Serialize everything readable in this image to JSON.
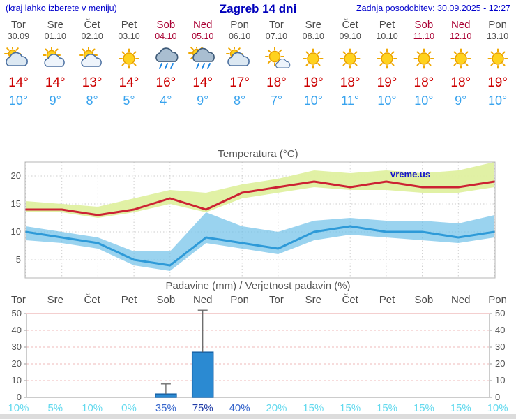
{
  "header": {
    "left_note": "(kraj lahko izberete v meniju)",
    "title": "Zagreb 14 dni",
    "updated": "Zadnja posodobitev: 30.09.2025 - 12:27"
  },
  "days": [
    {
      "name": "Tor",
      "date": "30.09",
      "weekend": false,
      "icon": "cloudy",
      "tmax": "14°",
      "tmin": "10°",
      "pop": "10%",
      "pop_level": "low"
    },
    {
      "name": "Sre",
      "date": "01.10",
      "weekend": false,
      "icon": "partly",
      "tmax": "14°",
      "tmin": "9°",
      "pop": "5%",
      "pop_level": "low"
    },
    {
      "name": "Čet",
      "date": "02.10",
      "weekend": false,
      "icon": "partly",
      "tmax": "13°",
      "tmin": "8°",
      "pop": "10%",
      "pop_level": "low"
    },
    {
      "name": "Pet",
      "date": "03.10",
      "weekend": false,
      "icon": "sunny",
      "tmax": "14°",
      "tmin": "5°",
      "pop": "0%",
      "pop_level": "low"
    },
    {
      "name": "Sob",
      "date": "04.10",
      "weekend": true,
      "icon": "rain",
      "tmax": "16°",
      "tmin": "4°",
      "pop": "35%",
      "pop_level": "mid"
    },
    {
      "name": "Ned",
      "date": "05.10",
      "weekend": true,
      "icon": "sun-rain",
      "tmax": "14°",
      "tmin": "9°",
      "pop": "75%",
      "pop_level": "high"
    },
    {
      "name": "Pon",
      "date": "06.10",
      "weekend": false,
      "icon": "cloudy",
      "tmax": "17°",
      "tmin": "8°",
      "pop": "40%",
      "pop_level": "mid"
    },
    {
      "name": "Tor",
      "date": "07.10",
      "weekend": false,
      "icon": "mostly-sunny",
      "tmax": "18°",
      "tmin": "7°",
      "pop": "20%",
      "pop_level": "low"
    },
    {
      "name": "Sre",
      "date": "08.10",
      "weekend": false,
      "icon": "sunny",
      "tmax": "19°",
      "tmin": "10°",
      "pop": "15%",
      "pop_level": "low"
    },
    {
      "name": "Čet",
      "date": "09.10",
      "weekend": false,
      "icon": "sunny",
      "tmax": "18°",
      "tmin": "11°",
      "pop": "15%",
      "pop_level": "low"
    },
    {
      "name": "Pet",
      "date": "10.10",
      "weekend": false,
      "icon": "sunny",
      "tmax": "19°",
      "tmin": "10°",
      "pop": "15%",
      "pop_level": "low"
    },
    {
      "name": "Sob",
      "date": "11.10",
      "weekend": true,
      "icon": "sunny",
      "tmax": "18°",
      "tmin": "10°",
      "pop": "15%",
      "pop_level": "low"
    },
    {
      "name": "Ned",
      "date": "12.10",
      "weekend": true,
      "icon": "sunny",
      "tmax": "18°",
      "tmin": "9°",
      "pop": "15%",
      "pop_level": "low"
    },
    {
      "name": "Pon",
      "date": "13.10",
      "weekend": false,
      "icon": "sunny",
      "tmax": "19°",
      "tmin": "10°",
      "pop": "10%",
      "pop_level": "low"
    }
  ],
  "chart_data": [
    {
      "type": "line",
      "title": "Temperatura (°C)",
      "watermark": "vreme.us",
      "categories": [
        "Tor",
        "Sre",
        "Čet",
        "Pet",
        "Sob",
        "Ned",
        "Pon",
        "Tor",
        "Sre",
        "Čet",
        "Pet",
        "Sob",
        "Ned",
        "Pon"
      ],
      "yticks": [
        5,
        10,
        15,
        20
      ],
      "ylim": [
        1,
        23
      ],
      "grid": true,
      "series": [
        {
          "name": "temp_max",
          "color": "#cc2233",
          "values": [
            14,
            14,
            13,
            14,
            16,
            14,
            17,
            18,
            19,
            18,
            19,
            18,
            18,
            19
          ]
        },
        {
          "name": "temp_min",
          "color": "#2e9ad8",
          "values": [
            10,
            9,
            8,
            5,
            4,
            9,
            8,
            7,
            10,
            11,
            10,
            10,
            9,
            10
          ]
        },
        {
          "name": "temp_max_band_upper",
          "values": [
            15.5,
            15,
            14.5,
            16,
            17.5,
            17,
            18.5,
            19.5,
            21,
            20.5,
            21,
            20.5,
            21,
            22.5
          ]
        },
        {
          "name": "temp_max_band_lower",
          "values": [
            13.5,
            13.5,
            12.5,
            13.5,
            15,
            13.5,
            16,
            17,
            18,
            17.5,
            17.5,
            17,
            17,
            18
          ]
        },
        {
          "name": "temp_min_band_upper",
          "values": [
            11,
            10,
            9,
            6.5,
            6.5,
            13.5,
            11,
            10,
            12,
            12.5,
            12,
            12,
            11.5,
            13
          ]
        },
        {
          "name": "temp_min_band_lower",
          "values": [
            8.5,
            8,
            7,
            4,
            3,
            8,
            7,
            6,
            8.5,
            9.5,
            9,
            8.5,
            8,
            9
          ]
        }
      ]
    },
    {
      "type": "bar",
      "title": "Padavine (mm) / Verjetnost padavin (%)",
      "categories": [
        "Tor",
        "Sre",
        "Čet",
        "Pet",
        "Sob",
        "Ned",
        "Pon",
        "Tor",
        "Sre",
        "Čet",
        "Pet",
        "Sob",
        "Ned",
        "Pon"
      ],
      "yticks": [
        0,
        10,
        20,
        30,
        40,
        50
      ],
      "ylim": [
        0,
        50
      ],
      "values": [
        0,
        0,
        0,
        0,
        2,
        27,
        0,
        0,
        0,
        0,
        0,
        0,
        0,
        0
      ],
      "whisker_max": [
        0,
        0,
        0,
        0,
        8,
        52,
        0,
        0,
        0,
        0,
        0,
        0,
        0,
        0
      ],
      "probabilities": [
        "10%",
        "5%",
        "10%",
        "0%",
        "35%",
        "75%",
        "40%",
        "20%",
        "15%",
        "15%",
        "15%",
        "15%",
        "15%",
        "10%"
      ]
    }
  ],
  "colors": {
    "header_blue": "#0000cc",
    "weekday_gray": "#4a4a4a",
    "weekend_red": "#aa0033",
    "tmax_red": "#cc0000",
    "tmin_blue": "#38a3ee",
    "max_band_green": "#dff0a0",
    "min_band_blue": "#6fc0e8",
    "bar_blue": "#2b8ad2",
    "pop_low": "#62d9ee",
    "pop_mid": "#3565cc",
    "pop_high": "#1e3aa6"
  }
}
